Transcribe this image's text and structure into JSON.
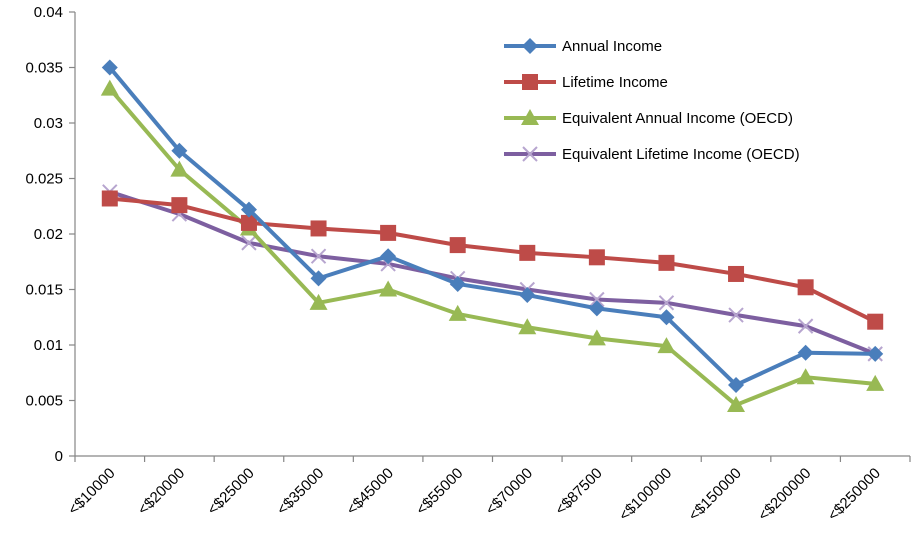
{
  "chart_data": {
    "type": "line",
    "title": "",
    "xlabel": "",
    "ylabel": "",
    "ylim": [
      0,
      0.04
    ],
    "yticks": [
      "0",
      "0.005",
      "0.01",
      "0.015",
      "0.02",
      "0.025",
      "0.03",
      "0.035",
      "0.04"
    ],
    "categories": [
      "<$10000",
      "<$20000",
      "<$25000",
      "<$35000",
      "<$45000",
      "<$55000",
      "<$70000",
      "<$87500",
      "<$100000",
      "<$150000",
      "<$200000",
      "<$250000"
    ],
    "grid": false,
    "legend": "top-right",
    "series": [
      {
        "name": "Annual Income",
        "color": "#4a7ebb",
        "marker": "diamond",
        "values": [
          0.035,
          0.0275,
          0.0222,
          0.016,
          0.018,
          0.0155,
          0.0145,
          0.0133,
          0.0125,
          0.0064,
          0.0093,
          0.0092
        ]
      },
      {
        "name": "Lifetime Income",
        "color": "#be4b48",
        "marker": "square",
        "values": [
          0.0232,
          0.0226,
          0.021,
          0.0205,
          0.0201,
          0.019,
          0.0183,
          0.0179,
          0.0174,
          0.0164,
          0.0152,
          0.0121
        ]
      },
      {
        "name": "Equivalent Annual Income (OECD)",
        "color": "#98b954",
        "marker": "triangle",
        "values": [
          0.0331,
          0.0258,
          0.0205,
          0.0138,
          0.015,
          0.0128,
          0.0116,
          0.0106,
          0.0099,
          0.0046,
          0.0071,
          0.0065
        ]
      },
      {
        "name": "Equivalent Lifetime Income (OECD)",
        "color": "#7d5fa0",
        "marker": "x",
        "values": [
          0.0238,
          0.0218,
          0.0192,
          0.018,
          0.0173,
          0.016,
          0.015,
          0.0141,
          0.0138,
          0.0127,
          0.0117,
          0.0092
        ]
      }
    ]
  }
}
